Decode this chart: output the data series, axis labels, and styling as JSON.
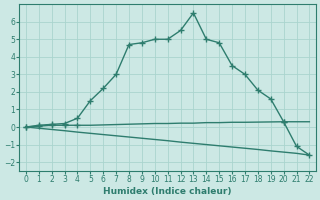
{
  "line1_x": [
    0,
    1,
    2,
    3,
    4,
    5,
    6,
    7,
    8,
    9,
    10,
    11,
    12,
    13,
    14,
    15,
    16,
    17,
    18,
    19,
    20,
    21,
    22
  ],
  "line1_y": [
    0.0,
    0.1,
    0.15,
    0.2,
    0.5,
    1.5,
    2.2,
    3.0,
    4.7,
    4.8,
    5.0,
    5.0,
    5.5,
    6.5,
    5.0,
    4.8,
    3.5,
    3.0,
    2.1,
    1.6,
    0.3,
    -1.1,
    -1.6
  ],
  "line2_x": [
    0,
    1,
    2,
    3,
    4,
    20
  ],
  "line2_y": [
    0.0,
    0.05,
    0.1,
    0.1,
    0.1,
    0.3
  ],
  "line2_full_x": [
    0,
    1,
    2,
    3,
    4,
    5,
    6,
    7,
    8,
    9,
    10,
    11,
    12,
    13,
    14,
    15,
    16,
    17,
    18,
    19,
    20,
    21,
    22
  ],
  "line2_full_y": [
    0.0,
    0.05,
    0.1,
    0.1,
    0.1,
    0.1,
    0.12,
    0.14,
    0.16,
    0.18,
    0.2,
    0.2,
    0.22,
    0.22,
    0.25,
    0.25,
    0.27,
    0.27,
    0.28,
    0.29,
    0.3,
    0.3,
    0.3
  ],
  "line3_x": [
    0,
    1,
    2,
    3,
    4,
    5,
    6,
    7,
    8,
    9,
    10,
    11,
    12,
    13,
    14,
    15,
    16,
    17,
    18,
    19,
    20,
    21,
    22
  ],
  "line3_y": [
    0.0,
    -0.07,
    -0.14,
    -0.21,
    -0.29,
    -0.36,
    -0.43,
    -0.5,
    -0.57,
    -0.64,
    -0.71,
    -0.78,
    -0.86,
    -0.93,
    -1.0,
    -1.07,
    -1.14,
    -1.21,
    -1.28,
    -1.36,
    -1.43,
    -1.5,
    -1.6
  ],
  "color": "#2e7d6e",
  "bg_color": "#cce8e4",
  "grid_color": "#aad4ce",
  "xlabel": "Humidex (Indice chaleur)",
  "xlim": [
    -0.5,
    22.5
  ],
  "ylim": [
    -2.5,
    7.0
  ],
  "yticks": [
    -2,
    -1,
    0,
    1,
    2,
    3,
    4,
    5,
    6
  ],
  "xticks": [
    0,
    1,
    2,
    3,
    4,
    5,
    6,
    7,
    8,
    9,
    10,
    11,
    12,
    13,
    14,
    15,
    16,
    17,
    18,
    19,
    20,
    21,
    22
  ],
  "marker": "+",
  "markersize": 4,
  "markeredgewidth": 1.0,
  "linewidth": 1.0
}
